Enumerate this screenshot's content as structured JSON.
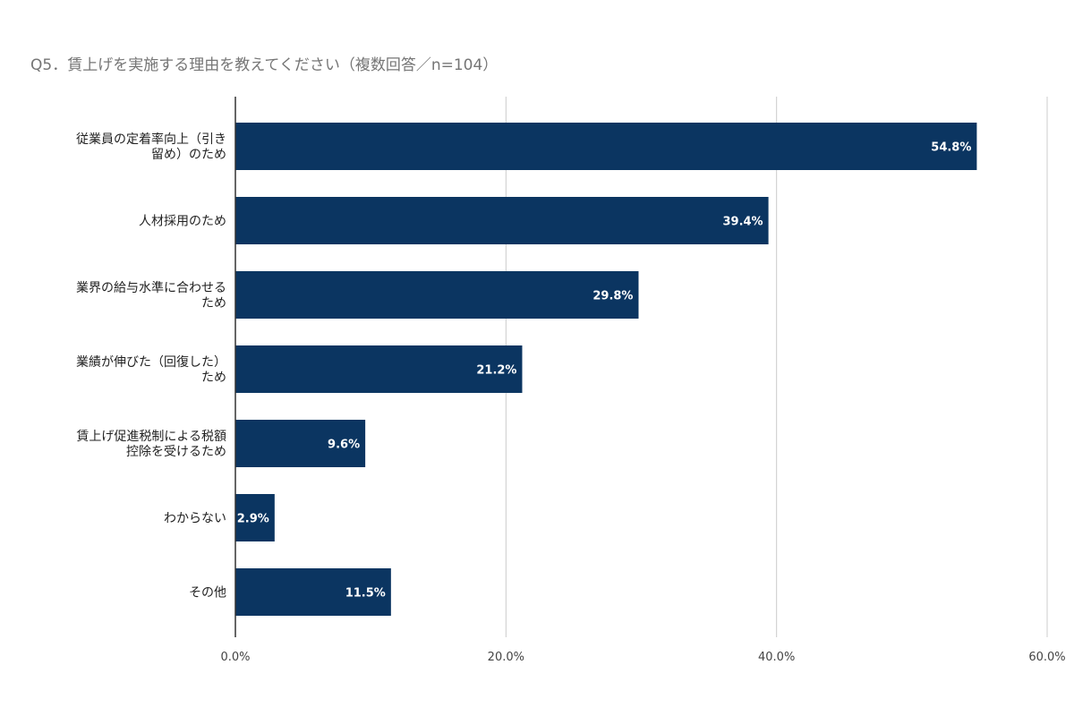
{
  "chart_data": {
    "type": "bar",
    "orientation": "horizontal",
    "title": "Q5．賃上げを実施する理由を教えてください（複数回答／n=104）",
    "categories": [
      [
        "従業員の定着率向上（引き",
        "留め）のため"
      ],
      [
        "人材採用のため"
      ],
      [
        "業界の給与水準に合わせる",
        "ため"
      ],
      [
        "業績が伸びた（回復した）",
        "ため"
      ],
      [
        "賃上げ促進税制による税額",
        "控除を受けるため"
      ],
      [
        "わからない"
      ],
      [
        "その他"
      ]
    ],
    "values": [
      54.8,
      39.4,
      29.8,
      21.2,
      9.6,
      2.9,
      11.5
    ],
    "value_labels": [
      "54.8%",
      "39.4%",
      "29.8%",
      "21.2%",
      "9.6%",
      "2.9%",
      "11.5%"
    ],
    "xlim": [
      0,
      60
    ],
    "xticks": [
      0,
      20,
      40,
      60
    ],
    "xtick_labels": [
      "0.0%",
      "20.0%",
      "40.0%",
      "60.0%"
    ],
    "bar_color": "#0b3561",
    "grid": true,
    "legend": "none"
  }
}
